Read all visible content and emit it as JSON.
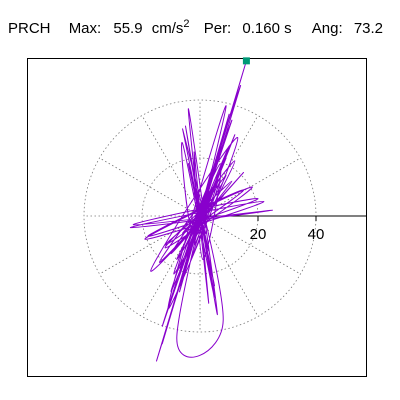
{
  "header": {
    "station": "PRCH",
    "max_label": "Max:",
    "max_value": "55.9",
    "max_unit": "cm/s",
    "max_unit_exp": "2",
    "period_label": "Per:",
    "period_value": "0.160 s",
    "angle_label": "Ang:",
    "angle_value": "73.2"
  },
  "chart_data": {
    "type": "scatter",
    "title": "",
    "xlabel": "",
    "ylabel": "",
    "units": "cm/s²",
    "xlim": [
      -58,
      58
    ],
    "ylim": [
      -55,
      55
    ],
    "polar_grid": {
      "ring_radii": [
        20,
        40
      ],
      "spoke_step_deg": 30,
      "dashed": true
    },
    "axis_ticks": [
      {
        "value": 20,
        "label": "20"
      },
      {
        "value": 40,
        "label": "40"
      }
    ],
    "peak_point": {
      "x": 16.0,
      "y": 53.5,
      "magnitude": 55.9,
      "angle_deg": 73.2
    },
    "peak_marker_color": "#009977",
    "trace_color": "#8800cc",
    "orbit_trace": [
      [
        0,
        0
      ],
      [
        6,
        14
      ],
      [
        -3,
        -15
      ],
      [
        7,
        13
      ],
      [
        -5,
        -11
      ],
      [
        4,
        9
      ],
      [
        -2,
        -8
      ],
      [
        5,
        10
      ],
      [
        -6,
        -12
      ],
      [
        3,
        11
      ],
      [
        -4,
        -9
      ],
      [
        10,
        24
      ],
      [
        -8,
        -22
      ],
      [
        9,
        20
      ],
      [
        -7,
        -18
      ],
      [
        12,
        28
      ],
      [
        -10,
        -26
      ],
      [
        11,
        33
      ],
      [
        -13,
        -38
      ],
      [
        14,
        45
      ],
      [
        -15,
        -50
      ],
      [
        16,
        53.5
      ],
      [
        -13,
        -44
      ],
      [
        10,
        35
      ],
      [
        -7,
        -26
      ],
      [
        4,
        16
      ],
      [
        -2,
        -10
      ],
      [
        6,
        12
      ],
      [
        -8,
        -15
      ],
      [
        9,
        14
      ],
      [
        -10,
        -13
      ],
      [
        11,
        12
      ],
      [
        -12,
        -11
      ],
      [
        18,
        10
      ],
      [
        -19,
        -8
      ],
      [
        22,
        5
      ],
      [
        -24,
        -4
      ],
      [
        25,
        2
      ],
      [
        -23,
        -3
      ],
      [
        20,
        6
      ],
      [
        -18,
        -7
      ],
      [
        15,
        9
      ],
      [
        -12,
        -10
      ],
      [
        8,
        7
      ],
      [
        -6,
        -6
      ],
      [
        4,
        5
      ],
      [
        -3,
        -4
      ],
      [
        -6,
        25
      ],
      [
        5,
        -28
      ],
      [
        -5,
        31
      ],
      [
        6,
        -34
      ],
      [
        -4,
        37
      ],
      [
        3,
        -30
      ],
      [
        -2,
        22
      ],
      [
        1,
        -15
      ],
      [
        7,
        18
      ],
      [
        -9,
        -20
      ],
      [
        12,
        19
      ],
      [
        -14,
        -16
      ],
      [
        15,
        15
      ],
      [
        -17,
        -19
      ],
      [
        13,
        27
      ],
      [
        -11,
        -32
      ],
      [
        9,
        38
      ],
      [
        -8,
        -42
      ],
      [
        8,
        -36
      ],
      [
        -6,
        30
      ],
      [
        5,
        -24
      ],
      [
        -4,
        18
      ],
      [
        3,
        -12
      ],
      [
        -2,
        8
      ],
      [
        2,
        -6
      ],
      [
        1,
        5
      ],
      [
        0,
        -3
      ],
      [
        0,
        0
      ]
    ]
  }
}
